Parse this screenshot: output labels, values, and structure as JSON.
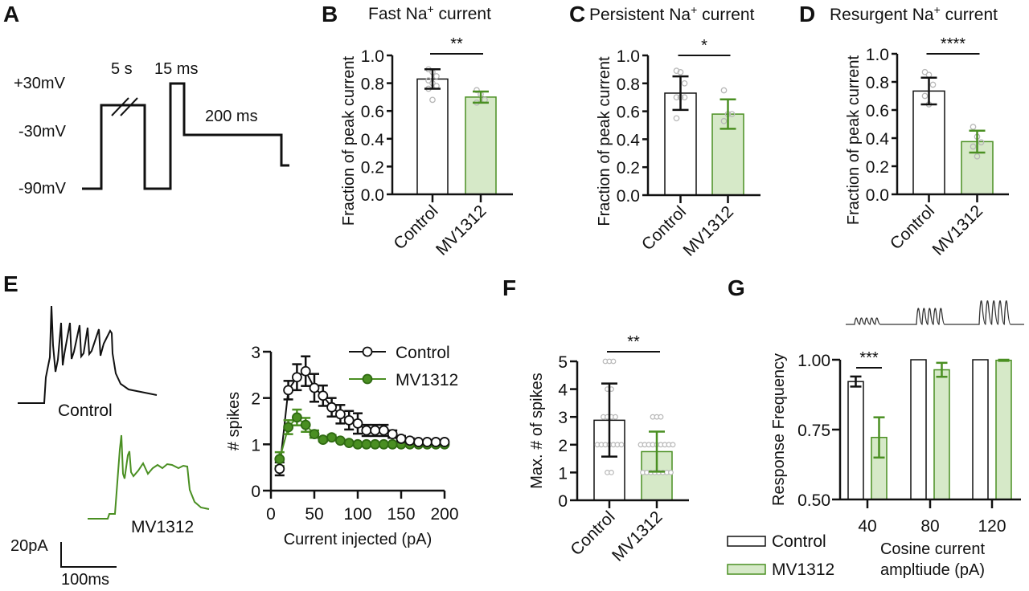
{
  "colors": {
    "control_stroke": "#111111",
    "mv_stroke": "#4a8f22",
    "mv_fill": "#d6e9c8",
    "mv_marker": "#4a8f22",
    "dot": "#b8b8b8"
  },
  "panel_labels": [
    "A",
    "B",
    "C",
    "D",
    "E",
    "F",
    "G"
  ],
  "panelA": {
    "voltages": [
      "+30mV",
      "-30mV",
      "-90mV"
    ],
    "durations": [
      "5 s",
      "15 ms",
      "200 ms"
    ]
  },
  "panelE_traces": {
    "control_label": "Control",
    "mv_label": "MV1312",
    "scale_y": "20pA",
    "scale_x": "100ms"
  },
  "chart_data": [
    {
      "id": "B",
      "type": "bar",
      "title": "Fast Na+ current",
      "title_main": "Fast Na",
      "title_sup": "+",
      "title_rest": " current",
      "ylabel": "Fraction of peak current",
      "xlabel": "",
      "categories": [
        "Control",
        "MV1312"
      ],
      "values": [
        0.83,
        0.7
      ],
      "errors": [
        0.07,
        0.04
      ],
      "points": [
        [
          0.9,
          0.88,
          0.85,
          0.82,
          0.8,
          0.78,
          0.76,
          0.68
        ],
        [
          0.75,
          0.72,
          0.68,
          0.66
        ]
      ],
      "ylim": [
        0,
        1.0
      ],
      "yticks": [
        "0.0",
        "0.2",
        "0.4",
        "0.6",
        "0.8",
        "1.0"
      ],
      "significance": "**"
    },
    {
      "id": "C",
      "type": "bar",
      "title": "Persistent Na+ current",
      "title_main": "Persistent Na",
      "title_sup": "+",
      "title_rest": " current",
      "ylabel": "Fraction of peak current",
      "xlabel": "",
      "categories": [
        "Control",
        "MV1312"
      ],
      "values": [
        0.73,
        0.58
      ],
      "errors": [
        0.12,
        0.105
      ],
      "points": [
        [
          0.89,
          0.88,
          0.8,
          0.7,
          0.7,
          0.7,
          0.55
        ],
        [
          0.75,
          0.58,
          0.58,
          0.53
        ]
      ],
      "ylim": [
        0,
        1.0
      ],
      "yticks": [
        "0.0",
        "0.2",
        "0.4",
        "0.6",
        "0.8",
        "1.0"
      ],
      "significance": "*"
    },
    {
      "id": "D",
      "type": "bar",
      "title": "Resurgent Na+ current",
      "title_main": "Resurgent Na",
      "title_sup": "+",
      "title_rest": " current",
      "ylabel": "Fraction of peak current",
      "xlabel": "",
      "categories": [
        "Control",
        "MV1312"
      ],
      "values": [
        0.735,
        0.375
      ],
      "errors": [
        0.095,
        0.078
      ],
      "points": [
        [
          0.87,
          0.85,
          0.78,
          0.7,
          0.64
        ],
        [
          0.48,
          0.41,
          0.37,
          0.34,
          0.27
        ]
      ],
      "ylim": [
        0,
        1.0
      ],
      "yticks": [
        "0.0",
        "0.2",
        "0.4",
        "0.6",
        "0.8",
        "1.0"
      ],
      "significance": "****"
    },
    {
      "id": "E",
      "type": "line",
      "title": "",
      "xlabel": "Current injected (pA)",
      "ylabel": "# spikes",
      "xlim": [
        0,
        200
      ],
      "ylim": [
        0,
        3
      ],
      "xticks": [
        "0",
        "50",
        "100",
        "150",
        "200"
      ],
      "yticks": [
        "0",
        "1",
        "2",
        "3"
      ],
      "x": [
        10,
        20,
        30,
        40,
        50,
        60,
        70,
        80,
        90,
        100,
        110,
        120,
        130,
        140,
        150,
        160,
        170,
        180,
        190,
        200
      ],
      "legend_position": "top-right",
      "series": [
        {
          "name": "Control",
          "values": [
            0.47,
            2.17,
            2.45,
            2.58,
            2.22,
            2.05,
            1.8,
            1.65,
            1.52,
            1.45,
            1.3,
            1.3,
            1.3,
            1.22,
            1.12,
            1.08,
            1.05,
            1.05,
            1.05,
            1.05
          ],
          "errors": [
            0.14,
            0.2,
            0.28,
            0.32,
            0.3,
            0.22,
            0.2,
            0.2,
            0.2,
            0.22,
            0.12,
            0.12,
            0.12,
            0.08,
            0.06,
            0.05,
            0.03,
            0.03,
            0.03,
            0.03
          ]
        },
        {
          "name": "MV1312",
          "values": [
            0.68,
            1.37,
            1.58,
            1.42,
            1.22,
            1.1,
            1.15,
            1.08,
            1.03,
            1.0,
            1.0,
            1.0,
            1.0,
            1.0,
            1.0,
            1.0,
            1.0,
            1.0,
            1.0,
            1.0
          ],
          "errors": [
            0.15,
            0.15,
            0.17,
            0.15,
            0.08,
            0.04,
            0.05,
            0.03,
            0.02,
            0.01,
            0.01,
            0.01,
            0.01,
            0.01,
            0.01,
            0.01,
            0.01,
            0.01,
            0.01,
            0.01
          ]
        }
      ]
    },
    {
      "id": "F",
      "type": "bar",
      "title": "",
      "ylabel": "Max. # of spikes",
      "xlabel": "",
      "categories": [
        "Control",
        "MV1312"
      ],
      "values": [
        2.88,
        1.75
      ],
      "errors_upper": [
        4.2,
        2.47
      ],
      "errors_lower": [
        1.57,
        1.03
      ],
      "points": [
        [
          5,
          5,
          5,
          4,
          4,
          3,
          3,
          3,
          3,
          2,
          2,
          2,
          2,
          2,
          2,
          2,
          1,
          1
        ],
        [
          3,
          3,
          3,
          2,
          2,
          2,
          2,
          2,
          2,
          2,
          2,
          2,
          1,
          1,
          1,
          1,
          1,
          1,
          1,
          1
        ]
      ],
      "ylim": [
        0,
        5
      ],
      "yticks": [
        "0",
        "1",
        "2",
        "3",
        "4",
        "5"
      ],
      "significance": "**"
    },
    {
      "id": "G",
      "type": "bar",
      "title": "",
      "ylabel": "Response Frequency",
      "xlabel": "Cosine current ampltiude (pA)",
      "xlabel_lines": [
        "Cosine current",
        "ampltiude (pA)"
      ],
      "categories": [
        "40",
        "80",
        "120"
      ],
      "ylim": [
        0.5,
        1.0
      ],
      "yticks": [
        "0.50",
        "0.75",
        "1.00"
      ],
      "series": [
        {
          "name": "Control",
          "values": [
            0.922,
            1.0,
            1.0
          ],
          "errors": [
            0.018,
            0,
            0
          ]
        },
        {
          "name": "MV1312",
          "values": [
            0.722,
            0.964,
            0.998
          ],
          "errors": [
            0.072,
            0.025,
            0.002
          ]
        }
      ],
      "legend": [
        "Control",
        "MV1312"
      ],
      "legend_position": "bottom-left",
      "significance": "***",
      "stimulus_waveform": "cosine bursts at 3 amplitudes"
    }
  ]
}
